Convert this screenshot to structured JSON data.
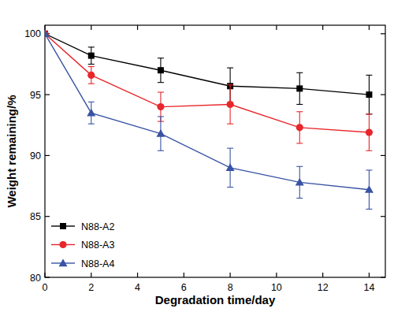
{
  "chart_data": {
    "type": "line",
    "x_label": "Degradation time/day",
    "y_label": "Weight remaining/%",
    "x": [
      0,
      2,
      5,
      8,
      11,
      14
    ],
    "series": [
      {
        "name": "N88-A2",
        "color": "#000000",
        "marker": "square",
        "values": [
          100,
          98.2,
          97.0,
          95.7,
          95.5,
          95.0
        ],
        "errors": [
          0,
          0.7,
          1.0,
          1.5,
          1.3,
          1.6
        ]
      },
      {
        "name": "N88-A3",
        "color": "#e8262b",
        "marker": "circle",
        "values": [
          100,
          96.6,
          94.0,
          94.2,
          92.3,
          91.9
        ],
        "errors": [
          0,
          0.7,
          1.2,
          1.6,
          1.3,
          1.5
        ]
      },
      {
        "name": "N88-A4",
        "color": "#3953a4",
        "marker": "triangle",
        "values": [
          100,
          93.5,
          91.8,
          89.0,
          87.8,
          87.2
        ],
        "errors": [
          0,
          0.9,
          1.4,
          1.6,
          1.3,
          1.6
        ]
      }
    ],
    "xlim": [
      0,
      14.7
    ],
    "xticks": [
      0,
      2,
      4,
      6,
      8,
      10,
      12,
      14
    ],
    "ylim": [
      80,
      100.7
    ],
    "yticks": [
      80,
      85,
      90,
      95,
      100
    ],
    "legend": "lower left",
    "grid": false
  }
}
